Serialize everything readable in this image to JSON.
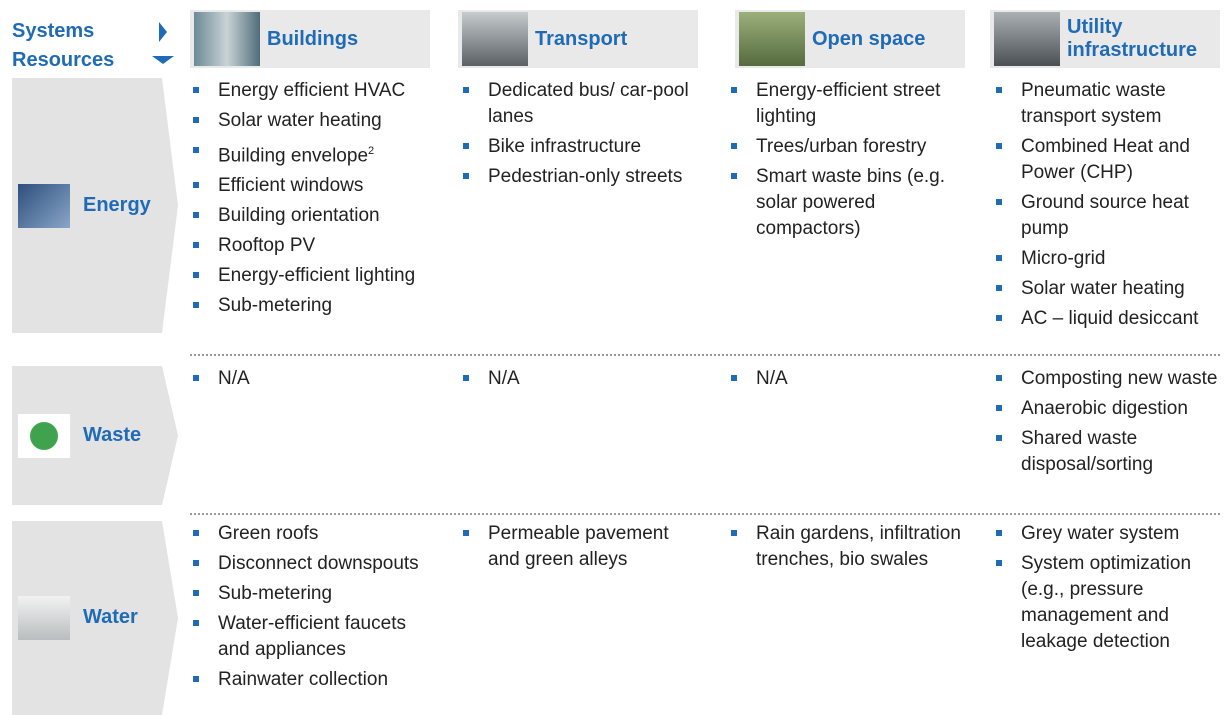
{
  "header": {
    "systems": "Systems",
    "resources": "Resources"
  },
  "columns": [
    "Buildings",
    "Transport",
    "Open space",
    "Utility infrastructure"
  ],
  "rows": [
    {
      "label": "Energy",
      "cells": [
        [
          "Energy efficient HVAC",
          "Solar water heating",
          {
            "text": "Building envelope",
            "note": "2"
          },
          "Efficient windows",
          "Building orientation",
          "Rooftop PV",
          "Energy-efficient lighting",
          "Sub-metering"
        ],
        [
          "Dedicated bus/ car-pool lanes",
          "Bike infrastructure",
          "Pedestrian-only streets"
        ],
        [
          "Energy-efficient street lighting",
          "Trees/urban forestry",
          "Smart waste bins (e.g. solar powered compactors)"
        ],
        [
          "Pneumatic waste transport system",
          "Combined Heat and Power (CHP)",
          "Ground source heat pump",
          "Micro-grid",
          "Solar water heating",
          "AC – liquid desiccant"
        ]
      ]
    },
    {
      "label": "Waste",
      "cells": [
        [
          "N/A"
        ],
        [
          "N/A"
        ],
        [
          "N/A"
        ],
        [
          "Composting new waste",
          "Anaerobic digestion",
          "Shared waste disposal/sorting"
        ]
      ]
    },
    {
      "label": "Water",
      "cells": [
        [
          "Green roofs",
          "Disconnect downspouts",
          "Sub-metering",
          "Water-efficient faucets and appliances",
          "Rainwater collection"
        ],
        [
          "Permeable pavement and green alleys"
        ],
        [
          "Rain gardens, infiltration trenches, bio swales"
        ],
        [
          "Grey water system",
          "System optimization (e.g., pressure management and leakage detection"
        ]
      ]
    }
  ]
}
